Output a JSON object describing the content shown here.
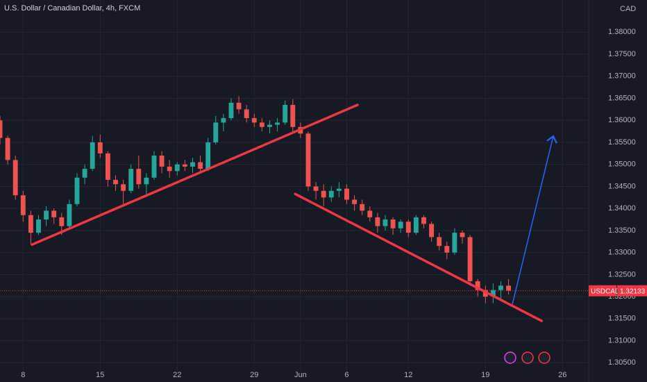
{
  "chart_data": {
    "type": "candlestick",
    "title": "U.S. Dollar / Canadian Dollar, 4h, FXCM",
    "currency": "CAD",
    "symbol": "USDCAD",
    "last_price": 1.32133,
    "up_color": "#26a69a",
    "down_color": "#ef5350",
    "grid": true,
    "xlim": [
      -3,
      73.4
    ],
    "ylim": [
      1.303,
      1.3873
    ],
    "xticks": [
      {
        "value": 0,
        "label": "8"
      },
      {
        "value": 10,
        "label": "15"
      },
      {
        "value": 20,
        "label": "22"
      },
      {
        "value": 30,
        "label": "29"
      },
      {
        "value": 36,
        "label": "Jun"
      },
      {
        "value": 42,
        "label": "6"
      },
      {
        "value": 50,
        "label": "12"
      },
      {
        "value": 60,
        "label": "19"
      },
      {
        "value": 70,
        "label": "26"
      }
    ],
    "yticks": [
      {
        "value": 1.305,
        "label": "1.30500"
      },
      {
        "value": 1.31,
        "label": "1.31000"
      },
      {
        "value": 1.315,
        "label": "1.31500"
      },
      {
        "value": 1.32,
        "label": "1.32000"
      },
      {
        "value": 1.325,
        "label": "1.32500"
      },
      {
        "value": 1.33,
        "label": "1.33000"
      },
      {
        "value": 1.335,
        "label": "1.33500"
      },
      {
        "value": 1.34,
        "label": "1.34000"
      },
      {
        "value": 1.345,
        "label": "1.34500"
      },
      {
        "value": 1.35,
        "label": "1.35000"
      },
      {
        "value": 1.355,
        "label": "1.35500"
      },
      {
        "value": 1.36,
        "label": "1.36000"
      },
      {
        "value": 1.365,
        "label": "1.36500"
      },
      {
        "value": 1.37,
        "label": "1.37000"
      },
      {
        "value": 1.375,
        "label": "1.37500"
      },
      {
        "value": 1.38,
        "label": "1.38000"
      }
    ],
    "x": [
      -3,
      -2,
      -1,
      0,
      1,
      2,
      3,
      4,
      5,
      6,
      7,
      8,
      9,
      10,
      11,
      12,
      13,
      14,
      15,
      16,
      17,
      18,
      19,
      20,
      21,
      22,
      23,
      24,
      25,
      26,
      27,
      28,
      29,
      30,
      31,
      32,
      33,
      34,
      35,
      36,
      37,
      38,
      39,
      40,
      41,
      42,
      43,
      44,
      45,
      46,
      47,
      48,
      49,
      50,
      51,
      52,
      53,
      54,
      55,
      56,
      57,
      58,
      59,
      60,
      61,
      62,
      63
    ],
    "open": [
      1.36,
      1.356,
      1.351,
      1.343,
      1.3385,
      1.3345,
      1.3375,
      1.3395,
      1.338,
      1.336,
      1.341,
      1.347,
      1.349,
      1.355,
      1.3525,
      1.3465,
      1.3455,
      1.344,
      1.349,
      1.3455,
      1.347,
      1.352,
      1.3495,
      1.3485,
      1.35,
      1.3495,
      1.3505,
      1.349,
      1.355,
      1.3595,
      1.3605,
      1.364,
      1.3625,
      1.3605,
      1.3595,
      1.3585,
      1.359,
      1.3595,
      1.3635,
      1.3585,
      1.357,
      1.345,
      1.344,
      1.3425,
      1.344,
      1.3445,
      1.342,
      1.341,
      1.3395,
      1.338,
      1.336,
      1.3375,
      1.3355,
      1.337,
      1.3345,
      1.338,
      1.3365,
      1.3335,
      1.3315,
      1.33,
      1.3345,
      1.3335,
      1.3235,
      1.3215,
      1.32,
      1.3215,
      1.3225
    ],
    "high": [
      1.361,
      1.3565,
      1.352,
      1.344,
      1.3395,
      1.3385,
      1.3405,
      1.34,
      1.339,
      1.342,
      1.348,
      1.35,
      1.3565,
      1.3568,
      1.353,
      1.3475,
      1.3465,
      1.35,
      1.352,
      1.348,
      1.353,
      1.353,
      1.351,
      1.3505,
      1.351,
      1.3515,
      1.352,
      1.356,
      1.361,
      1.3615,
      1.365,
      1.3655,
      1.3635,
      1.3615,
      1.3605,
      1.36,
      1.3605,
      1.3645,
      1.3648,
      1.3595,
      1.3575,
      1.346,
      1.3455,
      1.345,
      1.346,
      1.3455,
      1.343,
      1.342,
      1.3405,
      1.339,
      1.3385,
      1.338,
      1.3375,
      1.3375,
      1.3385,
      1.3385,
      1.337,
      1.3345,
      1.3325,
      1.3355,
      1.335,
      1.334,
      1.324,
      1.3225,
      1.323,
      1.3235,
      1.324
    ],
    "low": [
      1.3545,
      1.35,
      1.342,
      1.337,
      1.3318,
      1.334,
      1.336,
      1.3365,
      1.334,
      1.3355,
      1.3405,
      1.3455,
      1.3485,
      1.3515,
      1.345,
      1.344,
      1.3405,
      1.3435,
      1.3445,
      1.343,
      1.3465,
      1.348,
      1.347,
      1.3475,
      1.3485,
      1.348,
      1.348,
      1.3485,
      1.3545,
      1.3575,
      1.36,
      1.3615,
      1.3595,
      1.3585,
      1.3575,
      1.357,
      1.3575,
      1.359,
      1.3575,
      1.356,
      1.344,
      1.342,
      1.3405,
      1.3415,
      1.3425,
      1.341,
      1.3395,
      1.3385,
      1.337,
      1.3345,
      1.335,
      1.334,
      1.3345,
      1.3335,
      1.334,
      1.3355,
      1.3325,
      1.3305,
      1.3285,
      1.3295,
      1.332,
      1.3225,
      1.32,
      1.3185,
      1.3185,
      1.3195,
      1.3205
    ],
    "close": [
      1.356,
      1.351,
      1.343,
      1.3385,
      1.3345,
      1.3375,
      1.3395,
      1.338,
      1.336,
      1.341,
      1.347,
      1.349,
      1.355,
      1.3525,
      1.3465,
      1.3455,
      1.344,
      1.349,
      1.3455,
      1.347,
      1.352,
      1.3495,
      1.3485,
      1.35,
      1.3495,
      1.3505,
      1.349,
      1.355,
      1.3595,
      1.3605,
      1.364,
      1.3625,
      1.3605,
      1.3595,
      1.3585,
      1.359,
      1.3595,
      1.3635,
      1.3585,
      1.357,
      1.345,
      1.344,
      1.3425,
      1.344,
      1.3445,
      1.342,
      1.341,
      1.3395,
      1.338,
      1.336,
      1.3375,
      1.3355,
      1.337,
      1.3345,
      1.338,
      1.3365,
      1.3335,
      1.3315,
      1.33,
      1.3345,
      1.3335,
      1.3235,
      1.3215,
      1.32,
      1.3215,
      1.3225,
      1.32133
    ],
    "drawings": [
      {
        "color": "#f23645",
        "x": [
          1.14,
          43.4
        ],
        "y": [
          1.3318,
          1.3635
        ]
      },
      {
        "color": "#f23645",
        "x": [
          35.3,
          67.3
        ],
        "y": [
          1.3433,
          1.3145
        ]
      },
      {
        "color": "#2962ff",
        "x": [
          63.5,
          68.8
        ],
        "y": [
          1.3183,
          1.3564
        ]
      }
    ]
  }
}
